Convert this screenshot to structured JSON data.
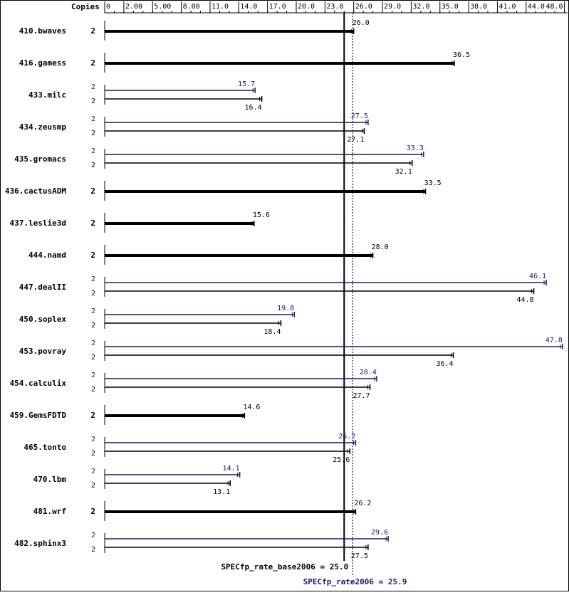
{
  "chart_data": {
    "type": "bar",
    "orientation": "horizontal",
    "header": {
      "copies_label": "Copies"
    },
    "xaxis": {
      "min": 0,
      "max": 48.0,
      "ticks": [
        0,
        2.0,
        5.0,
        8.0,
        11.0,
        14.0,
        17.0,
        20.0,
        23.0,
        26.0,
        29.0,
        32.0,
        35.0,
        38.0,
        41.0,
        44.0,
        48.0
      ],
      "tick_labels": [
        "0",
        "2.00",
        "5.00",
        "8.00",
        "11.0",
        "14.0",
        "17.0",
        "20.0",
        "23.0",
        "26.0",
        "29.0",
        "32.0",
        "35.0",
        "38.0",
        "41.0",
        "44.0",
        "48.0"
      ]
    },
    "colors": {
      "base": "#000000",
      "peak": "#191970"
    },
    "benchmarks": [
      {
        "name": "410.bwaves",
        "copies": "2",
        "combined": true,
        "base": 26.0,
        "base_label": "26.0"
      },
      {
        "name": "416.gamess",
        "copies": "2",
        "combined": true,
        "base": 36.5,
        "base_label": "36.5"
      },
      {
        "name": "433.milc",
        "peak_copies": "2",
        "base_copies": "2",
        "combined": false,
        "peak": 15.7,
        "peak_label": "15.7",
        "base": 16.4,
        "base_label": "16.4"
      },
      {
        "name": "434.zeusmp",
        "peak_copies": "2",
        "base_copies": "2",
        "combined": false,
        "peak": 27.5,
        "peak_label": "27.5",
        "base": 27.1,
        "base_label": "27.1"
      },
      {
        "name": "435.gromacs",
        "peak_copies": "2",
        "base_copies": "2",
        "combined": false,
        "peak": 33.3,
        "peak_label": "33.3",
        "base": 32.1,
        "base_label": "32.1"
      },
      {
        "name": "436.cactusADM",
        "copies": "2",
        "combined": true,
        "base": 33.5,
        "base_label": "33.5"
      },
      {
        "name": "437.leslie3d",
        "copies": "2",
        "combined": true,
        "base": 15.6,
        "base_label": "15.6"
      },
      {
        "name": "444.namd",
        "copies": "2",
        "combined": true,
        "base": 28.0,
        "base_label": "28.0"
      },
      {
        "name": "447.dealII",
        "peak_copies": "2",
        "base_copies": "2",
        "combined": false,
        "peak": 46.1,
        "peak_label": "46.1",
        "base": 44.8,
        "base_label": "44.8"
      },
      {
        "name": "450.soplex",
        "peak_copies": "2",
        "base_copies": "2",
        "combined": false,
        "peak": 19.8,
        "peak_label": "19.8",
        "base": 18.4,
        "base_label": "18.4"
      },
      {
        "name": "453.povray",
        "peak_copies": "2",
        "base_copies": "2",
        "combined": false,
        "peak": 47.8,
        "peak_label": "47.8",
        "base": 36.4,
        "base_label": "36.4"
      },
      {
        "name": "454.calculix",
        "peak_copies": "2",
        "base_copies": "2",
        "combined": false,
        "peak": 28.4,
        "peak_label": "28.4",
        "base": 27.7,
        "base_label": "27.7"
      },
      {
        "name": "459.GemsFDTD",
        "copies": "2",
        "combined": true,
        "base": 14.6,
        "base_label": "14.6"
      },
      {
        "name": "465.tonto",
        "peak_copies": "2",
        "base_copies": "2",
        "combined": false,
        "peak": 26.2,
        "peak_label": "26.2",
        "base": 25.6,
        "base_label": "25.6"
      },
      {
        "name": "470.lbm",
        "peak_copies": "2",
        "base_copies": "2",
        "combined": false,
        "peak": 14.1,
        "peak_label": "14.1",
        "base": 13.1,
        "base_label": "13.1"
      },
      {
        "name": "481.wrf",
        "copies": "2",
        "combined": true,
        "base": 26.2,
        "base_label": "26.2"
      },
      {
        "name": "482.sphinx3",
        "peak_copies": "2",
        "base_copies": "2",
        "combined": false,
        "peak": 29.6,
        "peak_label": "29.6",
        "base": 27.5,
        "base_label": "27.5"
      }
    ],
    "reference_lines": [
      {
        "name": "SPECfp_rate_base2006",
        "value": 25.0,
        "label": "SPECfp_rate_base2006 = 25.0",
        "style": "solid"
      },
      {
        "name": "SPECfp_rate2006",
        "value": 25.9,
        "label": "SPECfp_rate2006 = 25.9",
        "style": "dotted"
      }
    ]
  }
}
